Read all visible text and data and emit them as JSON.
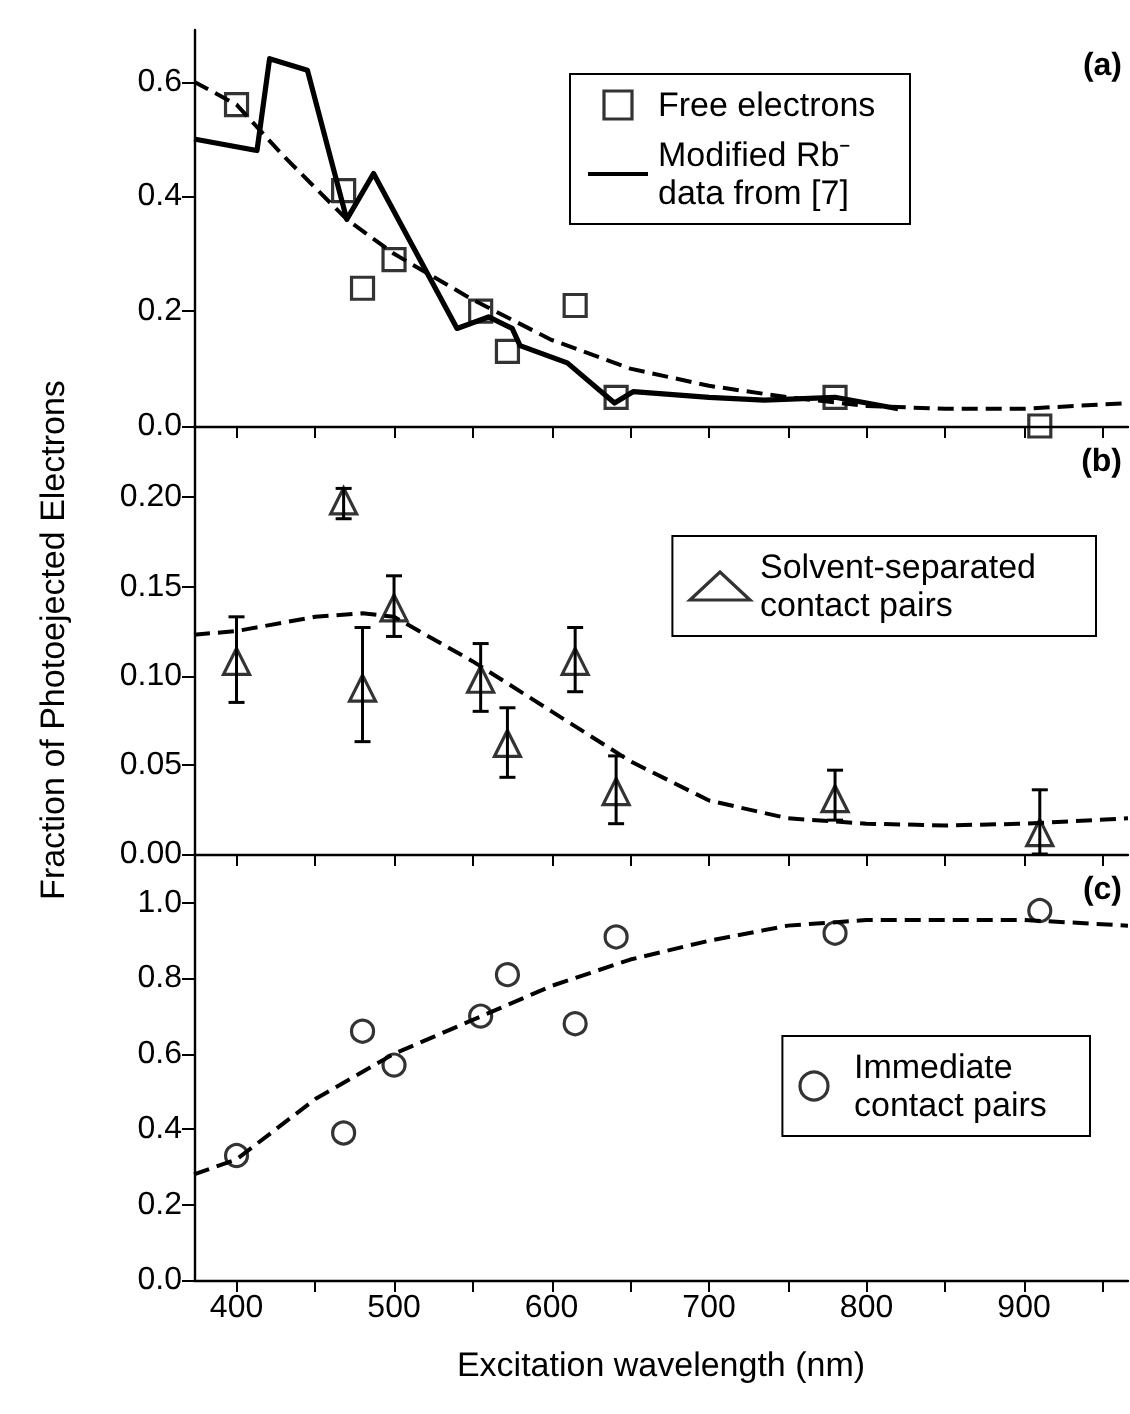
{
  "chart_data": [
    {
      "type": "scatter",
      "xlim": [
        373,
        966
      ],
      "xticks": [
        400,
        {
          "value": 450,
          "label": null
        },
        500,
        {
          "value": 550,
          "label": null
        },
        600,
        {
          "value": 650,
          "label": null
        },
        700,
        {
          "value": 750,
          "label": null
        },
        800,
        {
          "value": 850,
          "label": null
        },
        900,
        {
          "value": 950,
          "label": null
        }
      ],
      "ylim": [
        0,
        0.69
      ],
      "yticks": [
        {
          "value": 0,
          "label": "0.0"
        },
        0.2,
        0.4,
        0.6
      ],
      "tick_labels": "y",
      "grid": false,
      "legend": "top right",
      "annotations": [
        "(a)"
      ],
      "series": [
        {
          "name": "Free electrons",
          "marker": "square",
          "color": "#000000",
          "x": [
            400,
            468,
            480,
            500,
            555,
            572,
            615,
            641,
            780,
            910
          ],
          "values": [
            0.56,
            0.41,
            0.24,
            0.29,
            0.2,
            0.13,
            0.21,
            0.05,
            0.05,
            0.0
          ]
        },
        {
          "name": "Modified Rb⁻ data from [7]",
          "type": "line",
          "marker": "none",
          "line_style": "solid",
          "color": "#000000",
          "x": [
            373,
            413,
            421,
            445,
            470,
            487,
            540,
            560,
            575,
            580,
            610,
            640,
            652,
            700,
            735,
            780,
            820
          ],
          "values": [
            0.5,
            0.48,
            0.64,
            0.62,
            0.36,
            0.44,
            0.17,
            0.19,
            0.17,
            0.14,
            0.11,
            0.04,
            0.06,
            0.05,
            0.045,
            0.05,
            0.03
          ]
        },
        {
          "type": "line",
          "marker": "none",
          "line_style": "dashed",
          "color": "#000000",
          "x": [
            373,
            400,
            430,
            470,
            500,
            550,
            600,
            650,
            700,
            750,
            800,
            850,
            900,
            966
          ],
          "values": [
            0.6,
            0.56,
            0.47,
            0.36,
            0.3,
            0.22,
            0.15,
            0.1,
            0.07,
            0.05,
            0.035,
            0.03,
            0.03,
            0.04
          ]
        }
      ]
    },
    {
      "type": "scatter",
      "xlim": [
        373,
        966
      ],
      "xticks": [
        400,
        {
          "value": 450,
          "label": null
        },
        500,
        {
          "value": 550,
          "label": null
        },
        600,
        {
          "value": 650,
          "label": null
        },
        700,
        {
          "value": 750,
          "label": null
        },
        800,
        {
          "value": 850,
          "label": null
        },
        900,
        {
          "value": 950,
          "label": null
        }
      ],
      "ylim": [
        0,
        0.24
      ],
      "yticks": [
        {
          "value": 0,
          "label": "0.00"
        },
        0.05,
        {
          "value": 0.1,
          "label": "0.10"
        },
        0.15,
        {
          "value": 0.2,
          "label": "0.20"
        }
      ],
      "tick_labels": "y",
      "grid": false,
      "legend": "right",
      "annotations": [
        "(b)"
      ],
      "ylabel": "Fraction of Photoejected Electrons",
      "series": [
        {
          "name": "Solvent-separated contact pairs",
          "marker": "triangle",
          "color": "#000000",
          "x": [
            400,
            468,
            480,
            500,
            555,
            572,
            615,
            641,
            780,
            910
          ],
          "values": [
            0.108,
            0.198,
            0.093,
            0.138,
            0.098,
            0.062,
            0.108,
            0.035,
            0.031,
            0.012
          ],
          "errors": [
            [
              0.085,
              0.133
            ],
            [
              0.188,
              0.205
            ],
            [
              0.063,
              0.127
            ],
            [
              0.122,
              0.156
            ],
            [
              0.08,
              0.118
            ],
            [
              0.043,
              0.082
            ],
            [
              0.091,
              0.127
            ],
            [
              0.017,
              0.055
            ],
            [
              0.019,
              0.047
            ],
            [
              0.0,
              0.036
            ]
          ]
        },
        {
          "type": "line",
          "marker": "none",
          "line_style": "dashed",
          "color": "#000000",
          "x": [
            373,
            400,
            450,
            480,
            500,
            550,
            600,
            650,
            700,
            750,
            800,
            850,
            900,
            966
          ],
          "values": [
            0.123,
            0.125,
            0.133,
            0.135,
            0.133,
            0.108,
            0.08,
            0.052,
            0.03,
            0.02,
            0.017,
            0.016,
            0.017,
            0.02
          ]
        }
      ]
    },
    {
      "type": "scatter",
      "xlim": [
        373,
        966
      ],
      "xticks": [
        400,
        {
          "value": 450,
          "label": null
        },
        500,
        {
          "value": 550,
          "label": null
        },
        600,
        {
          "value": 650,
          "label": null
        },
        700,
        {
          "value": 750,
          "label": null
        },
        800,
        {
          "value": 850,
          "label": null
        },
        900,
        {
          "value": 950,
          "label": null
        }
      ],
      "ylim": [
        0,
        1.13
      ],
      "yticks": [
        {
          "value": 0,
          "label": "0.0"
        },
        0.2,
        0.4,
        0.6,
        0.8,
        {
          "value": 1,
          "label": "1.0"
        }
      ],
      "grid": false,
      "legend": "right",
      "annotations": [
        "(c)"
      ],
      "xlabel": "Excitation wavelength (nm)",
      "series": [
        {
          "name": "Immediate contact pairs",
          "marker": "circle",
          "color": "#000000",
          "x": [
            400,
            468,
            480,
            500,
            555,
            572,
            615,
            641,
            780,
            910
          ],
          "values": [
            0.33,
            0.39,
            0.66,
            0.57,
            0.7,
            0.81,
            0.68,
            0.91,
            0.92,
            0.98
          ]
        },
        {
          "type": "line",
          "marker": "none",
          "line_style": "dashed",
          "color": "#000000",
          "x": [
            373,
            400,
            450,
            500,
            550,
            600,
            650,
            700,
            750,
            800,
            850,
            900,
            966
          ],
          "values": [
            0.28,
            0.32,
            0.48,
            0.6,
            0.69,
            0.78,
            0.85,
            0.9,
            0.94,
            0.955,
            0.955,
            0.955,
            0.94
          ]
        }
      ]
    }
  ]
}
